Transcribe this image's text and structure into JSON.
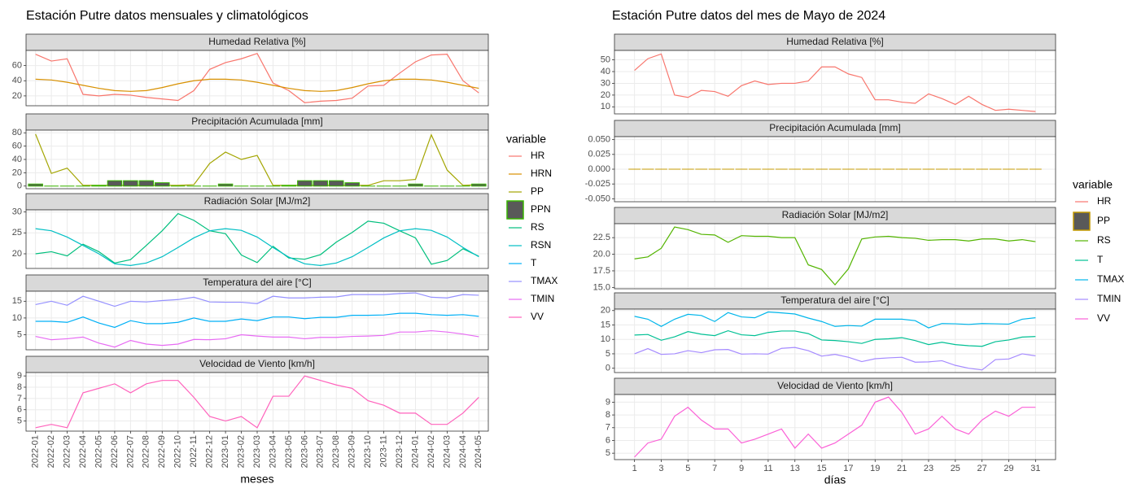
{
  "chart_data": [
    {
      "type": "line",
      "title": "Estación Putre datos mensuales y climatológicos",
      "x_label": "meses",
      "legend_title": "variable",
      "grid": true,
      "categories": [
        "2022-01",
        "2022-02",
        "2022-03",
        "2022-04",
        "2022-05",
        "2022-06",
        "2022-07",
        "2022-08",
        "2022-09",
        "2022-10",
        "2022-11",
        "2022-12",
        "2023-01",
        "2023-02",
        "2023-03",
        "2023-04",
        "2023-05",
        "2023-06",
        "2023-07",
        "2023-08",
        "2023-09",
        "2023-10",
        "2023-11",
        "2023-12",
        "2024-01",
        "2024-02",
        "2024-03",
        "2024-04",
        "2024-05"
      ],
      "facets": [
        {
          "title": "Humedad Relativa [%]",
          "ylim": [
            7,
            80
          ],
          "yticks": [
            20,
            40,
            60
          ],
          "series": [
            {
              "name": "HR",
              "color": "#F8766D",
              "values": [
                75,
                66,
                69,
                22,
                20,
                22,
                21,
                18,
                16,
                14,
                27,
                55,
                64,
                69,
                76,
                37,
                27,
                11,
                13,
                14,
                17,
                33,
                34,
                50,
                65,
                74,
                75,
                40,
                24
              ]
            },
            {
              "name": "HRN",
              "color": "#D89000",
              "values": [
                42,
                41,
                38,
                34,
                30,
                27,
                26,
                27,
                31,
                36,
                40,
                42,
                42,
                41,
                38,
                34,
                30,
                27,
                26,
                27,
                31,
                36,
                40,
                42,
                42,
                41,
                38,
                34,
                30
              ]
            }
          ]
        },
        {
          "title": "Precipitación Acumulada [mm]",
          "ylim": [
            -4,
            84
          ],
          "yticks": [
            0,
            20,
            40,
            60,
            80
          ],
          "series": [
            {
              "name": "PP",
              "color": "#A3A500",
              "values": [
                78,
                19,
                27,
                1,
                1,
                1,
                1,
                1,
                1,
                1,
                2,
                34,
                51,
                40,
                46,
                1,
                1,
                1,
                1,
                1,
                1,
                1,
                8,
                8,
                10,
                77,
                24,
                1,
                2
              ]
            },
            {
              "name": "PPN",
              "type": "bar",
              "color": "#39B600",
              "fill": "#595959",
              "values": [
                3,
                0,
                0,
                0,
                1,
                8,
                8,
                8,
                5,
                0,
                0,
                0,
                3,
                0,
                0,
                0,
                1,
                8,
                8,
                8,
                5,
                0,
                0,
                0,
                3,
                0,
                0,
                0,
                3
              ]
            }
          ]
        },
        {
          "title": "Radiación Solar [MJ/m2]",
          "ylim": [
            16.5,
            30.5
          ],
          "yticks": [
            20,
            25,
            30
          ],
          "series": [
            {
              "name": "RS",
              "color": "#00BF7D",
              "values": [
                20,
                20.5,
                19.5,
                22.3,
                20.5,
                17.8,
                18.6,
                22,
                25.5,
                29.6,
                28,
                25.5,
                24.8,
                19.7,
                17.9,
                21.8,
                19,
                18.7,
                19.8,
                22.8,
                25.1,
                27.8,
                27.3,
                25.5,
                23.8,
                17.5,
                18.4,
                21.2,
                19.4
              ]
            },
            {
              "name": "RSN",
              "color": "#00BFC4",
              "values": [
                26,
                25.5,
                24,
                22,
                20,
                17.6,
                17.2,
                17.8,
                19.3,
                21.5,
                23.8,
                25.5,
                26,
                25.6,
                24,
                21.5,
                19.2,
                17.6,
                17.2,
                17.8,
                19.3,
                21.5,
                23.8,
                25.5,
                26,
                25.6,
                24,
                21.5,
                19.3
              ]
            }
          ]
        },
        {
          "title": "Temperatura del aire [°C]",
          "ylim": [
            0.5,
            18
          ],
          "yticks": [
            5,
            10,
            15
          ],
          "series": [
            {
              "name": "T",
              "color": "#00B0F6",
              "values": [
                9,
                9,
                8.7,
                10.3,
                8.5,
                7.2,
                9.2,
                8.3,
                8.3,
                8.7,
                10,
                9,
                9,
                9.7,
                9.2,
                10.3,
                10.3,
                9.8,
                10.2,
                10.2,
                10.8,
                10.8,
                10.9,
                11.4,
                11.4,
                11,
                10.8,
                11,
                10.5
              ]
            },
            {
              "name": "TMAX",
              "color": "#9590FF",
              "values": [
                14,
                15,
                13.8,
                16.5,
                15,
                13.5,
                15,
                14.8,
                15.2,
                15.5,
                16.2,
                14.8,
                14.7,
                14.7,
                14.3,
                16.5,
                16,
                16,
                16.2,
                16.3,
                17,
                17,
                17,
                17.3,
                17.5,
                16.2,
                16,
                17,
                16.8
              ]
            },
            {
              "name": "TMIN",
              "color": "#E76BF3",
              "values": [
                4.5,
                3.5,
                3.8,
                4.3,
                2.5,
                1.3,
                3.3,
                2.2,
                1.8,
                2.2,
                3.6,
                3.5,
                3.8,
                5,
                4.6,
                4.3,
                4.3,
                3.8,
                4.2,
                4.2,
                4.5,
                4.6,
                4.8,
                5.8,
                5.8,
                6.2,
                5.8,
                5.2,
                4.4
              ]
            }
          ]
        },
        {
          "title": "Velocidad de Viento [km/h]",
          "ylim": [
            4.1,
            9.3
          ],
          "yticks": [
            5,
            6,
            7,
            8,
            9
          ],
          "series": [
            {
              "name": "VV",
              "color": "#FF62BC",
              "values": [
                4.4,
                4.7,
                4.4,
                7.5,
                7.9,
                8.3,
                7.5,
                8.3,
                8.6,
                8.6,
                7.1,
                5.4,
                5.0,
                5.4,
                4.4,
                7.2,
                7.2,
                9.0,
                8.6,
                8.2,
                7.9,
                6.8,
                6.4,
                5.7,
                5.7,
                4.7,
                4.7,
                5.7,
                7.1
              ]
            }
          ]
        }
      ]
    },
    {
      "type": "line",
      "title": "Estación Putre datos del mes de Mayo de 2024",
      "x_label": "días",
      "legend_title": "variable",
      "grid": true,
      "x": [
        1,
        2,
        3,
        4,
        5,
        6,
        7,
        8,
        9,
        10,
        11,
        12,
        13,
        14,
        15,
        16,
        17,
        18,
        19,
        20,
        21,
        22,
        23,
        24,
        25,
        26,
        27,
        28,
        29,
        30,
        31
      ],
      "xlim": [
        -0.5,
        32.5
      ],
      "xticks": [
        1,
        3,
        5,
        7,
        9,
        11,
        13,
        15,
        17,
        19,
        21,
        23,
        25,
        27,
        29,
        31
      ],
      "facets": [
        {
          "title": "Humedad Relativa [%]",
          "ylim": [
            4,
            58
          ],
          "yticks": [
            10,
            20,
            30,
            40,
            50
          ],
          "series": [
            {
              "name": "HR",
              "color": "#F8766D",
              "values": [
                41,
                51,
                55,
                20,
                18,
                24,
                23,
                19,
                28,
                32,
                29,
                30,
                30,
                32,
                44,
                44,
                38,
                35,
                16,
                16,
                14,
                13,
                21,
                17,
                12,
                19,
                12,
                7,
                8,
                7,
                6
              ]
            }
          ]
        },
        {
          "title": "Precipitación Acumulada [mm]",
          "ylim": [
            -0.055,
            0.055
          ],
          "yticks": [
            {
              "value": -0.05,
              "label": "-0.050"
            },
            {
              "value": -0.025,
              "label": "-0.025"
            },
            {
              "value": 0,
              "label": "0.000"
            },
            {
              "value": 0.025,
              "label": "0.025"
            },
            {
              "value": 0.05,
              "label": "0.050"
            }
          ],
          "series": [
            {
              "name": "PP",
              "type": "bar",
              "color": "#C49A00",
              "fill": "#595959",
              "values": [
                0,
                0,
                0,
                0,
                0,
                0,
                0,
                0,
                0,
                0,
                0,
                0,
                0,
                0,
                0,
                0,
                0,
                0,
                0,
                0,
                0,
                0,
                0,
                0,
                0,
                0,
                0,
                0,
                0,
                0,
                0
              ]
            }
          ]
        },
        {
          "title": "Radiación Solar [MJ/m2]",
          "ylim": [
            14.8,
            24.6
          ],
          "yticks": [
            {
              "value": 15,
              "label": "15.0"
            },
            17.5,
            {
              "value": 20,
              "label": "20.0"
            },
            22.5
          ],
          "series": [
            {
              "name": "RS",
              "color": "#53B400",
              "values": [
                19.3,
                19.6,
                20.9,
                24.1,
                23.7,
                23.0,
                22.9,
                21.8,
                22.8,
                22.7,
                22.7,
                22.5,
                22.5,
                18.4,
                17.7,
                15.4,
                17.8,
                22.3,
                22.6,
                22.7,
                22.5,
                22.4,
                22.1,
                22.2,
                22.2,
                22.0,
                22.3,
                22.3,
                22.0,
                22.2,
                21.9
              ]
            }
          ]
        },
        {
          "title": "Temperatura del aire [°C]",
          "ylim": [
            -1.5,
            20.5
          ],
          "yticks": [
            0,
            5,
            10,
            15,
            20
          ],
          "series": [
            {
              "name": "T",
              "color": "#00C094",
              "values": [
                11.5,
                11.7,
                9.7,
                10.9,
                12.7,
                11.8,
                11.3,
                13,
                11.6,
                11.3,
                12.4,
                12.9,
                12.9,
                12,
                9.8,
                9.6,
                9.2,
                8.6,
                10,
                10.2,
                10.6,
                9.6,
                8.2,
                9,
                8.2,
                7.8,
                7.6,
                9.2,
                9.8,
                10.8,
                11
              ]
            },
            {
              "name": "TMAX",
              "color": "#00B6EB",
              "values": [
                18,
                17,
                14.5,
                17,
                18.7,
                18.3,
                16.2,
                19.3,
                17.8,
                17.5,
                19.5,
                19.2,
                18.8,
                17.4,
                16.2,
                14.5,
                14.8,
                14.6,
                17,
                17,
                17,
                16.5,
                14,
                15.5,
                15.4,
                15.2,
                15.5,
                15.4,
                15.3,
                17,
                17.5
              ]
            },
            {
              "name": "TMIN",
              "color": "#A58AFF",
              "values": [
                5,
                6.8,
                4.8,
                5,
                6.1,
                5.4,
                6.4,
                6.5,
                4.9,
                5,
                4.9,
                6.9,
                7.2,
                6.1,
                4.2,
                4.8,
                3.8,
                2.3,
                3.3,
                3.6,
                3.8,
                2.1,
                2.2,
                2.6,
                1,
                0,
                -0.6,
                3,
                3.2,
                5,
                4.3
              ]
            }
          ]
        },
        {
          "title": "Velocidad de Viento [km/h]",
          "ylim": [
            4.5,
            9.6
          ],
          "yticks": [
            5,
            6,
            7,
            8,
            9
          ],
          "series": [
            {
              "name": "VV",
              "color": "#FB61D7",
              "values": [
                4.7,
                5.8,
                6.1,
                7.9,
                8.6,
                7.6,
                6.9,
                6.9,
                5.8,
                6.1,
                6.5,
                6.9,
                5.4,
                6.5,
                5.4,
                5.8,
                6.5,
                7.2,
                9,
                9.4,
                8.2,
                6.5,
                6.9,
                7.9,
                6.9,
                6.5,
                7.6,
                8.3,
                7.9,
                8.6,
                8.6
              ]
            }
          ]
        }
      ]
    }
  ]
}
